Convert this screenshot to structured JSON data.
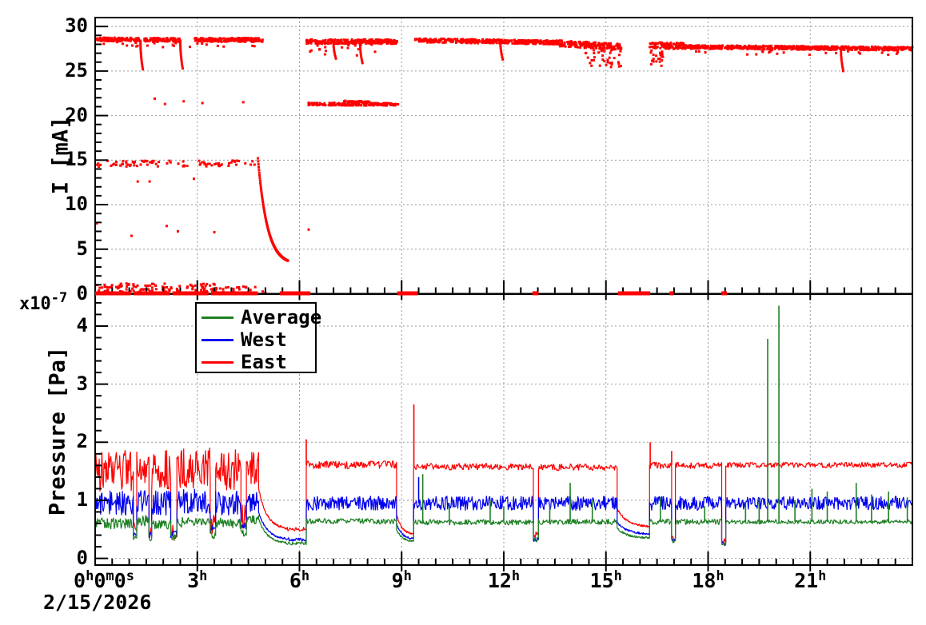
{
  "figure": {
    "background": "#ffffff"
  },
  "xaxis": {
    "date": "2/15/2026",
    "range_hours": [
      0,
      24
    ],
    "major_tick_hours": 3,
    "minor_tick_hours": 0.5,
    "tick_labels": [
      {
        "t": 0,
        "parts": [
          [
            "0",
            "h"
          ],
          [
            "0",
            "m"
          ],
          [
            "0",
            "s"
          ]
        ]
      },
      {
        "t": 3,
        "parts": [
          [
            "3",
            "h"
          ]
        ]
      },
      {
        "t": 6,
        "parts": [
          [
            "6",
            "h"
          ]
        ]
      },
      {
        "t": 9,
        "parts": [
          [
            "9",
            "h"
          ]
        ]
      },
      {
        "t": 12,
        "parts": [
          [
            "12",
            "h"
          ]
        ]
      },
      {
        "t": 15,
        "parts": [
          [
            "15",
            "h"
          ]
        ]
      },
      {
        "t": 18,
        "parts": [
          [
            "18",
            "h"
          ]
        ]
      },
      {
        "t": 21,
        "parts": [
          [
            "21",
            "h"
          ]
        ]
      }
    ]
  },
  "chart_data": [
    {
      "type": "scatter",
      "title": "",
      "ylabel": "I [mA]",
      "ylim": [
        0,
        31
      ],
      "yticks": [
        0,
        5,
        10,
        15,
        20,
        25,
        30
      ],
      "minor_step": 1,
      "grid": true,
      "color": "#ff0000",
      "marker_px": 3,
      "bands": [
        [
          0.0,
          1.3,
          28.55,
          28.55,
          0.2,
          130
        ],
        [
          1.45,
          2.48,
          28.5,
          28.5,
          0.22,
          95
        ],
        [
          2.88,
          4.92,
          28.5,
          28.5,
          0.22,
          190
        ],
        [
          0.2,
          4.8,
          27.95,
          27.95,
          0.3,
          22
        ],
        [
          6.2,
          8.87,
          28.3,
          28.3,
          0.25,
          250
        ],
        [
          6.3,
          8.6,
          27.35,
          27.35,
          0.7,
          18
        ],
        [
          9.4,
          13.6,
          28.45,
          28.2,
          0.22,
          380
        ],
        [
          13.6,
          15.45,
          28.1,
          27.7,
          0.35,
          175
        ],
        [
          14.4,
          15.45,
          26.7,
          26.5,
          1.2,
          45
        ],
        [
          16.28,
          17.3,
          27.9,
          27.8,
          0.35,
          95
        ],
        [
          16.3,
          16.75,
          26.4,
          26.4,
          1.0,
          22
        ],
        [
          17.3,
          24.0,
          27.7,
          27.5,
          0.2,
          580
        ],
        [
          17.5,
          23.8,
          27.1,
          27.1,
          0.3,
          22
        ],
        [
          6.25,
          8.9,
          21.3,
          21.25,
          0.15,
          150
        ],
        [
          7.3,
          8.05,
          21.55,
          21.5,
          0.12,
          45
        ],
        [
          0.05,
          4.78,
          14.6,
          14.6,
          0.35,
          85
        ],
        [
          0.0,
          3.55,
          0.6,
          0.6,
          0.55,
          115
        ],
        [
          3.55,
          5.0,
          0.45,
          0.45,
          0.4,
          22
        ]
      ],
      "dips": [
        [
          1.33,
          28.4,
          25.2
        ],
        [
          2.5,
          28.4,
          25.3
        ],
        [
          7.0,
          28.2,
          26.4
        ],
        [
          7.78,
          28.2,
          25.9
        ],
        [
          11.9,
          28.3,
          26.3
        ],
        [
          21.9,
          27.6,
          25.0
        ]
      ],
      "decay": [
        4.78,
        5.66,
        15.2,
        3.7
      ],
      "points": [
        [
          0.05,
          7.9
        ],
        [
          1.07,
          6.5
        ],
        [
          1.25,
          12.6
        ],
        [
          1.6,
          12.6
        ],
        [
          2.1,
          7.6
        ],
        [
          2.43,
          7.0
        ],
        [
          2.9,
          12.9
        ],
        [
          3.5,
          6.9
        ],
        [
          6.27,
          7.2
        ],
        [
          1.75,
          21.9
        ],
        [
          2.05,
          21.3
        ],
        [
          2.6,
          21.6
        ],
        [
          3.15,
          21.4
        ],
        [
          4.35,
          21.5
        ]
      ],
      "zero_level": 0.05,
      "zero_segments": [
        [
          0.0,
          1.05
        ],
        [
          1.13,
          2.2
        ],
        [
          2.27,
          3.33
        ],
        [
          3.4,
          4.78
        ],
        [
          5.42,
          6.32
        ],
        [
          8.87,
          9.48
        ],
        [
          12.84,
          13.02
        ],
        [
          15.35,
          16.3
        ],
        [
          16.87,
          16.99
        ],
        [
          18.39,
          18.55
        ]
      ]
    },
    {
      "type": "line",
      "title": "",
      "ylabel": "Pressure [Pa]",
      "scale_factor": {
        "base": "x10",
        "exp": "-7"
      },
      "ylim": [
        -0.115,
        4.55
      ],
      "yticks": [
        0,
        1,
        2,
        3,
        4
      ],
      "minor_step": 0.2,
      "grid": true,
      "legend_position": "top-left",
      "series": [
        {
          "name": "Average",
          "color": "#1e8023",
          "segments": [
            [
              "n",
              0,
              1.12,
              0.6,
              0.1
            ],
            [
              "n",
              1.12,
              1.22,
              0.36,
              0.05
            ],
            [
              "n",
              1.22,
              1.58,
              0.65,
              0.1
            ],
            [
              "n",
              1.58,
              1.66,
              0.34,
              0.05
            ],
            [
              "n",
              1.66,
              2.22,
              0.6,
              0.1
            ],
            [
              "n",
              2.22,
              2.4,
              0.36,
              0.06
            ],
            [
              "n",
              2.4,
              3.38,
              0.63,
              0.1
            ],
            [
              "n",
              3.38,
              3.54,
              0.4,
              0.07
            ],
            [
              "n",
              3.54,
              4.28,
              0.6,
              0.1
            ],
            [
              "n",
              4.28,
              4.44,
              0.44,
              0.07
            ],
            [
              "n",
              4.44,
              4.8,
              0.66,
              0.08
            ],
            [
              "d",
              4.8,
              5.6,
              0.68,
              0.27
            ],
            [
              "n",
              5.6,
              6.2,
              0.26,
              0.03
            ],
            [
              "n",
              6.2,
              8.85,
              0.64,
              0.05
            ],
            [
              "d",
              8.85,
              9.35,
              0.5,
              0.3
            ],
            [
              "n",
              9.35,
              12.87,
              0.62,
              0.05
            ],
            [
              "n",
              12.87,
              13.02,
              0.32,
              0.04
            ],
            [
              "n",
              13.02,
              15.33,
              0.63,
              0.05
            ],
            [
              "d",
              15.33,
              16.28,
              0.52,
              0.35
            ],
            [
              "n",
              16.28,
              16.93,
              0.63,
              0.05
            ],
            [
              "n",
              16.93,
              17.04,
              0.3,
              0.04
            ],
            [
              "n",
              17.04,
              18.4,
              0.63,
              0.05
            ],
            [
              "n",
              18.4,
              18.52,
              0.25,
              0.04
            ],
            [
              "n",
              18.52,
              24,
              0.63,
              0.04
            ]
          ],
          "spikes": [
            [
              9.62,
              1.45,
              0.62
            ],
            [
              10.4,
              0.95,
              0.62
            ],
            [
              11.6,
              1.0,
              0.62
            ],
            [
              12.0,
              0.9,
              0.62
            ],
            [
              13.35,
              0.9,
              0.63
            ],
            [
              13.95,
              1.3,
              0.63
            ],
            [
              14.6,
              1.0,
              0.63
            ],
            [
              16.6,
              1.05,
              0.63
            ],
            [
              17.9,
              0.9,
              0.63
            ],
            [
              19.1,
              0.95,
              0.63
            ],
            [
              19.5,
              1.05,
              0.63
            ],
            [
              19.75,
              3.78,
              0.63
            ],
            [
              20.08,
              4.35,
              0.63
            ],
            [
              20.55,
              1.0,
              0.63
            ],
            [
              21.05,
              1.2,
              0.63
            ],
            [
              21.5,
              1.15,
              0.63
            ],
            [
              22.35,
              1.3,
              0.63
            ],
            [
              22.8,
              1.1,
              0.63
            ],
            [
              23.3,
              1.15,
              0.63
            ],
            [
              23.85,
              1.05,
              0.63
            ]
          ]
        },
        {
          "name": "West",
          "color": "#0000f0",
          "segments": [
            [
              "n",
              0,
              1.12,
              0.95,
              0.22
            ],
            [
              "n",
              1.12,
              1.22,
              0.42,
              0.06
            ],
            [
              "n",
              1.22,
              1.58,
              1.0,
              0.2
            ],
            [
              "n",
              1.58,
              1.66,
              0.4,
              0.06
            ],
            [
              "n",
              1.66,
              2.22,
              0.95,
              0.22
            ],
            [
              "n",
              2.22,
              2.4,
              0.42,
              0.07
            ],
            [
              "n",
              2.4,
              3.38,
              0.98,
              0.22
            ],
            [
              "n",
              3.38,
              3.54,
              0.5,
              0.08
            ],
            [
              "n",
              3.54,
              4.28,
              0.95,
              0.22
            ],
            [
              "n",
              4.28,
              4.44,
              0.55,
              0.08
            ],
            [
              "n",
              4.44,
              4.8,
              0.98,
              0.18
            ],
            [
              "d",
              4.8,
              5.6,
              0.8,
              0.34
            ],
            [
              "n",
              5.6,
              6.2,
              0.33,
              0.04
            ],
            [
              "n",
              6.2,
              8.85,
              0.95,
              0.13
            ],
            [
              "d",
              8.85,
              9.35,
              0.6,
              0.34
            ],
            [
              "n",
              9.35,
              12.87,
              0.95,
              0.13
            ],
            [
              "n",
              12.87,
              13.02,
              0.32,
              0.05
            ],
            [
              "n",
              13.02,
              15.33,
              0.95,
              0.13
            ],
            [
              "d",
              15.33,
              16.28,
              0.62,
              0.42
            ],
            [
              "n",
              16.28,
              16.93,
              0.95,
              0.13
            ],
            [
              "n",
              16.93,
              17.04,
              0.3,
              0.05
            ],
            [
              "n",
              17.04,
              18.4,
              0.95,
              0.13
            ],
            [
              "n",
              18.4,
              18.52,
              0.27,
              0.05
            ],
            [
              "n",
              18.52,
              24,
              0.95,
              0.12
            ]
          ],
          "spikes": [
            [
              9.5,
              1.4,
              0.95
            ]
          ]
        },
        {
          "name": "East",
          "color": "#ff0000",
          "segments": [
            [
              "n",
              0,
              1.12,
              1.5,
              0.38
            ],
            [
              "n",
              1.12,
              1.22,
              0.5,
              0.15
            ],
            [
              "n",
              1.22,
              1.58,
              1.55,
              0.3
            ],
            [
              "n",
              1.58,
              1.66,
              0.45,
              0.12
            ],
            [
              "n",
              1.66,
              2.22,
              1.5,
              0.38
            ],
            [
              "n",
              2.22,
              2.4,
              0.45,
              0.15
            ],
            [
              "n",
              2.4,
              3.38,
              1.55,
              0.36
            ],
            [
              "n",
              3.38,
              3.54,
              0.6,
              0.2
            ],
            [
              "n",
              3.54,
              4.28,
              1.5,
              0.38
            ],
            [
              "n",
              4.28,
              4.44,
              0.7,
              0.25
            ],
            [
              "n",
              4.44,
              4.8,
              1.58,
              0.3
            ],
            [
              "d",
              4.8,
              5.6,
              1.2,
              0.52
            ],
            [
              "n",
              5.6,
              6.2,
              0.5,
              0.04
            ],
            [
              "n",
              6.2,
              8.85,
              1.61,
              0.07
            ],
            [
              "d",
              8.85,
              9.35,
              0.75,
              0.42
            ],
            [
              "n",
              9.35,
              12.87,
              1.58,
              0.06
            ],
            [
              "n",
              12.87,
              13.02,
              0.4,
              0.06
            ],
            [
              "n",
              13.02,
              15.33,
              1.57,
              0.06
            ],
            [
              "d",
              15.33,
              16.28,
              0.85,
              0.55
            ],
            [
              "n",
              16.28,
              16.93,
              1.6,
              0.06
            ],
            [
              "n",
              16.93,
              17.04,
              0.35,
              0.06
            ],
            [
              "n",
              17.04,
              18.4,
              1.6,
              0.06
            ],
            [
              "n",
              18.4,
              18.52,
              0.3,
              0.05
            ],
            [
              "n",
              18.52,
              24,
              1.61,
              0.05
            ]
          ],
          "spikes": [
            [
              6.2,
              2.05,
              1.6
            ],
            [
              9.36,
              2.65,
              1.58
            ],
            [
              16.3,
              2.0,
              1.6
            ],
            [
              16.93,
              1.85,
              1.6
            ]
          ]
        }
      ]
    }
  ]
}
